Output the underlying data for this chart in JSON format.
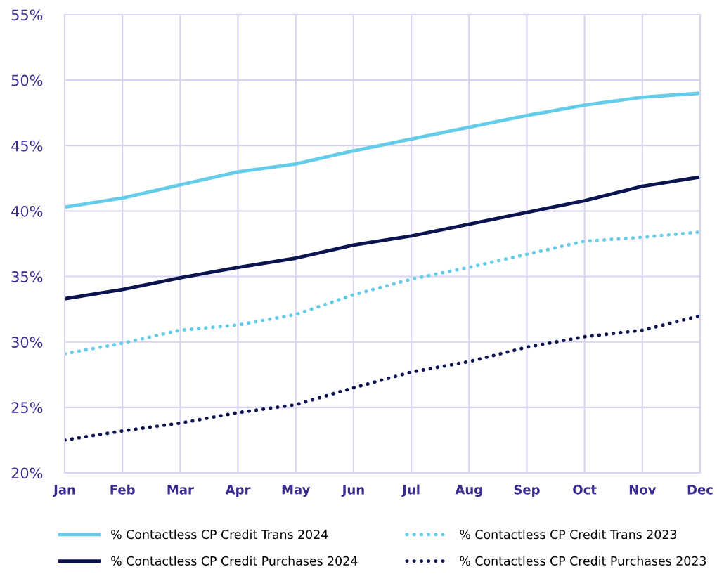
{
  "chart_data": {
    "type": "line",
    "categories": [
      "Jan",
      "Feb",
      "Mar",
      "Apr",
      "May",
      "Jun",
      "Jul",
      "Aug",
      "Sep",
      "Oct",
      "Nov",
      "Dec"
    ],
    "series": [
      {
        "name": "% Contactless CP Credit Trans 2024",
        "color": "#64cbe8",
        "line_style": "solid",
        "values": [
          40.3,
          41.0,
          42.0,
          43.0,
          43.6,
          44.6,
          45.5,
          46.4,
          47.3,
          48.1,
          48.7,
          49.0
        ]
      },
      {
        "name": "% Contactless CP Credit Purchases 2024",
        "color": "#0c1450",
        "line_style": "solid",
        "values": [
          33.3,
          34.0,
          34.9,
          35.7,
          36.4,
          37.4,
          38.1,
          39.0,
          39.9,
          40.8,
          41.9,
          42.6
        ]
      },
      {
        "name": "% Contactless CP Credit Trans 2023",
        "color": "#64cbe8",
        "line_style": "dotted",
        "values": [
          29.1,
          29.9,
          30.9,
          31.3,
          32.1,
          33.6,
          34.8,
          35.7,
          36.7,
          37.7,
          38.0,
          38.4
        ]
      },
      {
        "name": "% Contactless CP Credit Purchases 2023",
        "color": "#0c1450",
        "line_style": "dotted",
        "values": [
          22.5,
          23.2,
          23.8,
          24.6,
          25.2,
          26.5,
          27.7,
          28.5,
          29.6,
          30.4,
          30.9,
          32.0
        ]
      }
    ],
    "ylim": [
      20,
      55
    ],
    "yticks": [
      {
        "value": 20,
        "label": "20%"
      },
      {
        "value": 25,
        "label": "25%"
      },
      {
        "value": 30,
        "label": "30%"
      },
      {
        "value": 35,
        "label": "35%"
      },
      {
        "value": 40,
        "label": "40%"
      },
      {
        "value": 45,
        "label": "45%"
      },
      {
        "value": 50,
        "label": "50%"
      },
      {
        "value": 55,
        "label": "55%"
      }
    ],
    "grid": true,
    "legend": "bottom",
    "marker": "none"
  }
}
